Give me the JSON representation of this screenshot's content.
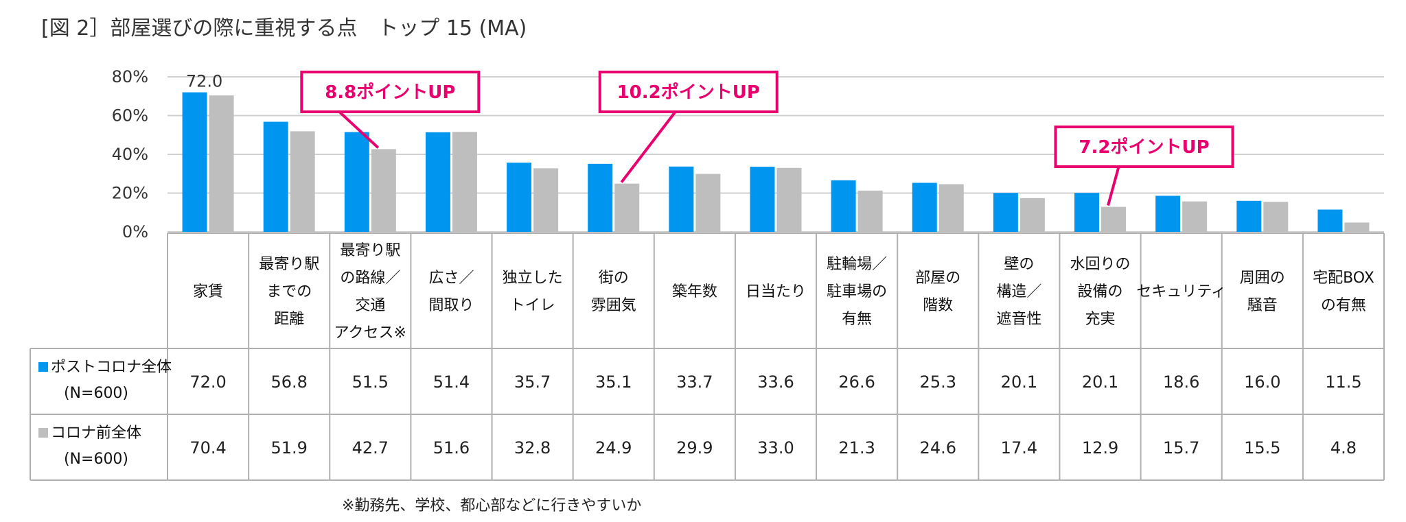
{
  "title": "[図 2］部屋選びの際に重視する点　トップ 15 (MA)",
  "colors": {
    "post": "#0096f0",
    "pre": "#bebebe",
    "accent": "#e8006e",
    "grid": "#d0d0d0",
    "border": "#b0b0b0"
  },
  "chart_data": {
    "type": "bar",
    "categories": [
      [
        "家賃"
      ],
      [
        "最寄り駅",
        "までの",
        "距離"
      ],
      [
        "最寄り駅",
        "の路線／",
        "交通",
        "アクセス※"
      ],
      [
        "広さ／",
        "間取り"
      ],
      [
        "独立した",
        "トイレ"
      ],
      [
        "街の",
        "雰囲気"
      ],
      [
        "築年数"
      ],
      [
        "日当たり"
      ],
      [
        "駐輪場／",
        "駐車場の",
        "有無"
      ],
      [
        "部屋の",
        "階数"
      ],
      [
        "壁の",
        "構造／",
        "遮音性"
      ],
      [
        "水回りの",
        "設備の",
        "充実"
      ],
      [
        "セキュリティ"
      ],
      [
        "周囲の",
        "騒音"
      ],
      [
        "宅配BOX",
        "の有無"
      ]
    ],
    "series": [
      {
        "name": "ポストコロナ全体",
        "n": "(N=600)",
        "values": [
          72.0,
          56.8,
          51.5,
          51.4,
          35.7,
          35.1,
          33.7,
          33.6,
          26.6,
          25.3,
          20.1,
          20.1,
          18.6,
          16.0,
          11.5
        ],
        "labels": [
          "72.0",
          "56.8",
          "51.5",
          "51.4",
          "35.7",
          "35.1",
          "33.7",
          "33.6",
          "26.6",
          "25.3",
          "20.1",
          "20.1",
          "18.6",
          "16.0",
          "11.5"
        ]
      },
      {
        "name": "コロナ前全体",
        "n": "(N=600)",
        "values": [
          70.4,
          51.9,
          42.7,
          51.6,
          32.8,
          24.9,
          29.9,
          33.0,
          21.3,
          24.6,
          17.4,
          12.9,
          15.7,
          15.5,
          4.8
        ],
        "labels": [
          "70.4",
          "51.9",
          "42.7",
          "51.6",
          "32.8",
          "24.9",
          "29.9",
          "33.0",
          "21.3",
          "24.6",
          "17.4",
          "12.9",
          "15.7",
          "15.5",
          "4.8"
        ]
      }
    ],
    "ylim": [
      0,
      80
    ],
    "yticks": [
      0,
      20,
      40,
      60,
      80
    ],
    "ytick_labels": [
      "0%",
      "20%",
      "40%",
      "60%",
      "80%"
    ],
    "top_label": "72.0",
    "annotations": [
      {
        "text": "8.8ポイントUP",
        "category_index": 2
      },
      {
        "text": "10.2ポイントUP",
        "category_index": 5
      },
      {
        "text": "7.2ポイントUP",
        "category_index": 11
      }
    ]
  },
  "footnote": "※勤務先、学校、都心部などに行きやすいか"
}
